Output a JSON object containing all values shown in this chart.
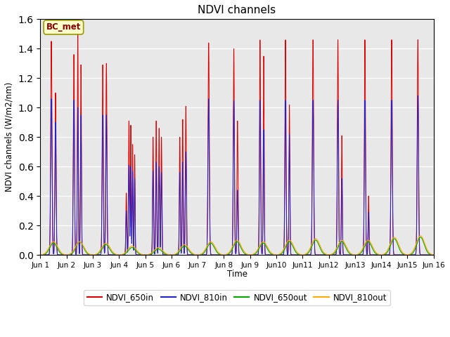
{
  "title": "NDVI channels",
  "ylabel": "NDVI channels (W/m2/nm)",
  "xlabel": "Time",
  "xlim": [
    0,
    15
  ],
  "ylim": [
    0,
    1.6
  ],
  "yticks": [
    0.0,
    0.2,
    0.4,
    0.6,
    0.8,
    1.0,
    1.2,
    1.4,
    1.6
  ],
  "xtick_labels": [
    "Jun 1",
    "Jun 2",
    "Jun 3",
    "Jun 4",
    "Jun 5",
    "Jun 6",
    "Jun 7",
    "Jun 8",
    "Jun 9",
    "Jun10",
    "Jun11",
    "Jun12",
    "Jun13",
    "Jun14",
    "Jun15",
    "Jun 16"
  ],
  "xtick_positions": [
    0,
    1,
    2,
    3,
    4,
    5,
    6,
    7,
    8,
    9,
    10,
    11,
    12,
    13,
    14,
    15
  ],
  "annotation_text": "BC_met",
  "bg_color": "#e8e8e8",
  "colors": {
    "NDVI_650in": "#dd0000",
    "NDVI_810in": "#2222cc",
    "NDVI_650out": "#00aa00",
    "NDVI_810out": "#ffaa00"
  },
  "legend_labels": [
    "NDVI_650in",
    "NDVI_810in",
    "NDVI_650out",
    "NDVI_810out"
  ]
}
